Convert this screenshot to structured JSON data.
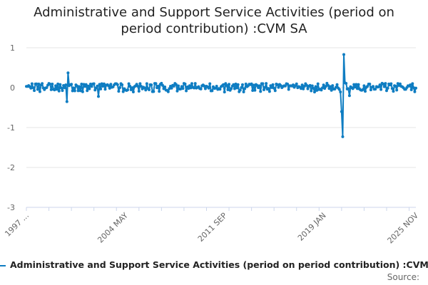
{
  "chart_data": {
    "type": "line",
    "title": "Administrative and Support Service Activities (period on period contribution) :CVM SA",
    "title_line1": "Administrative and Support Service Activities (period on",
    "title_line2": "period contribution) :CVM SA",
    "xlabel": "",
    "ylabel": "",
    "ylim": [
      -3,
      1
    ],
    "yticks": [
      "1",
      "0",
      "-1",
      "-2",
      "-3"
    ],
    "ytick_values": [
      1,
      0,
      -1,
      -2,
      -3
    ],
    "xticks": [
      "1997 ...",
      "2004 MAY",
      "2011 SEP",
      "2019 JAN",
      "2025 NOV"
    ],
    "xtick_positions": [
      0,
      88,
      176,
      264,
      346
    ],
    "x_count": 347,
    "grid": true,
    "legend": "bottom",
    "series": [
      {
        "name": "Administrative and Support Service Activities (period on period contribution) :CVM SA",
        "color": "#0f7dc2",
        "spikes": [
          {
            "i": 36,
            "v": -0.35
          },
          {
            "i": 37,
            "v": 0.37
          },
          {
            "i": 64,
            "v": -0.22
          },
          {
            "i": 210,
            "v": 0.1
          },
          {
            "i": 280,
            "v": -0.6
          },
          {
            "i": 281,
            "v": -1.23
          },
          {
            "i": 282,
            "v": 0.83
          },
          {
            "i": 283,
            "v": 0.12
          },
          {
            "i": 287,
            "v": -0.2
          }
        ]
      }
    ]
  },
  "legend": {
    "label": "Administrative and Support Service Activities (period on period contribution) :CVM SA"
  },
  "source": "Source:"
}
